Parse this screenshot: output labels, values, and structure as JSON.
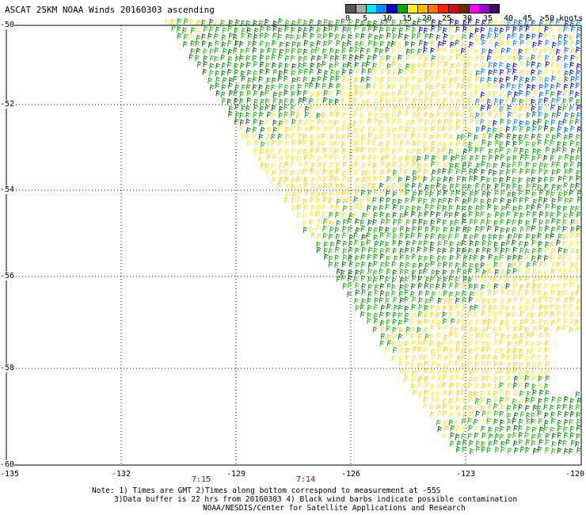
{
  "title": "ASCAT 25KM NOAA Winds 20160303 ascending",
  "legend": {
    "labels": [
      "0",
      "5",
      "10",
      "15",
      "20",
      "25",
      "30",
      "35",
      "40",
      "45",
      ">50 knots"
    ],
    "colors": [
      "#555555",
      "#a8a8a8",
      "#00e8ff",
      "#0088ff",
      "#0000cc",
      "#00aa00",
      "#ffee22",
      "#ffbb00",
      "#ff7700",
      "#ff2200",
      "#cc1111",
      "#6b2a00",
      "#ff00ff",
      "#9900cc",
      "#440066"
    ]
  },
  "axes": {
    "y_labels": [
      "-50",
      "-52",
      "-54",
      "-56",
      "-58",
      "-60"
    ],
    "x_labels": [
      "-135",
      "-132",
      "-129",
      "-126",
      "-123",
      "-120"
    ]
  },
  "time_labels": [
    "7:15",
    "7:14"
  ],
  "notes": [
    "Note: 1) Times are GMT 2)Times along bottom correspond to measurement at -55S",
    "3)Data buffer is 22 hrs from 20160303 4) Black wind barbs indicate possible contamination",
    "NOAA/NESDIS/Center for Satellite Applications and Research"
  ]
}
